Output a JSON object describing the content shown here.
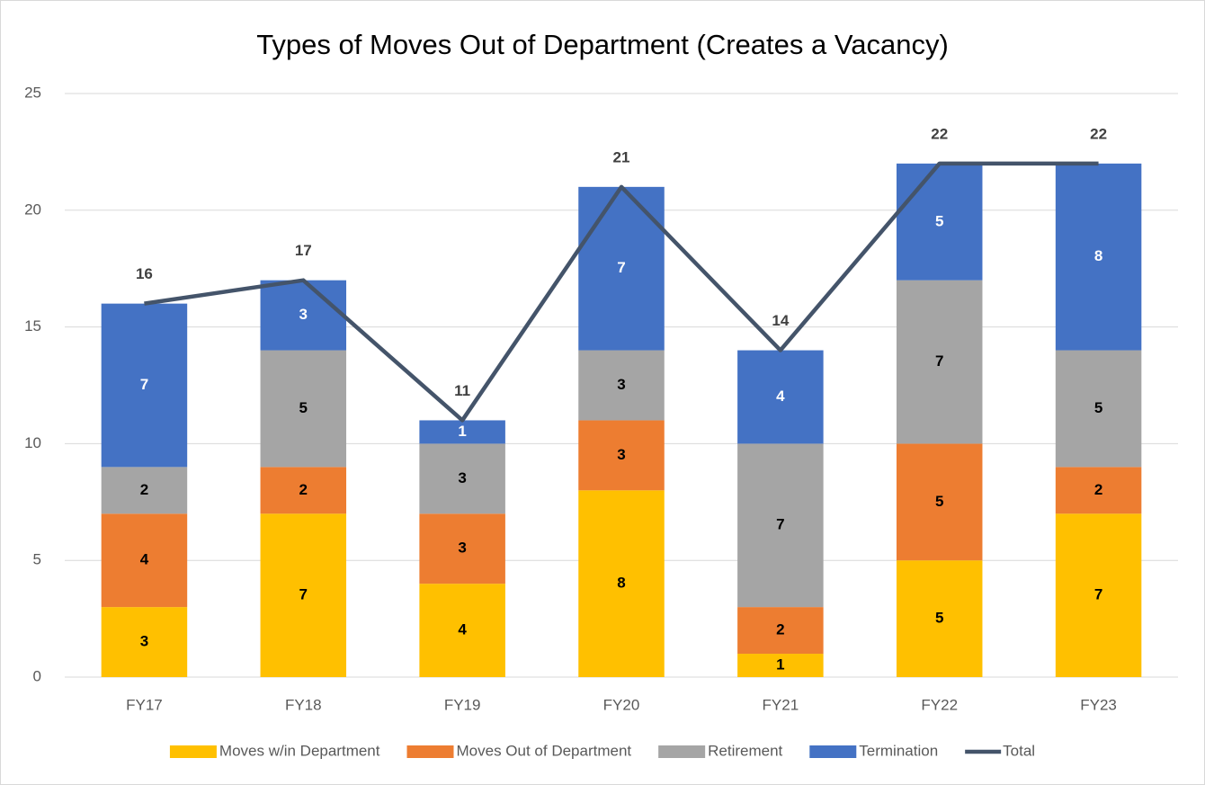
{
  "chart_data": {
    "type": "bar",
    "stacked": true,
    "title": "Types of Moves Out of Department (Creates a Vacancy)",
    "categories": [
      "FY17",
      "FY18",
      "FY19",
      "FY20",
      "FY21",
      "FY22",
      "FY23"
    ],
    "series": [
      {
        "name": "Moves w/in Department",
        "color": "#FFC000",
        "values": [
          3,
          7,
          4,
          8,
          1,
          5,
          7
        ]
      },
      {
        "name": "Moves Out of Department",
        "color": "#ED7D31",
        "values": [
          4,
          2,
          3,
          3,
          2,
          5,
          2
        ]
      },
      {
        "name": "Retirement",
        "color": "#A5A5A5",
        "values": [
          2,
          5,
          3,
          3,
          7,
          7,
          5
        ]
      },
      {
        "name": "Termination",
        "color": "#4472C4",
        "values": [
          7,
          3,
          1,
          7,
          4,
          5,
          8
        ]
      },
      {
        "name": "Total",
        "type": "line",
        "color": "#44546A",
        "values": [
          16,
          17,
          11,
          21,
          14,
          22,
          22
        ]
      }
    ],
    "ylim": [
      0,
      25
    ],
    "yticks": [
      0,
      5,
      10,
      15,
      20,
      25
    ],
    "grid": true,
    "legend": "bottom"
  }
}
